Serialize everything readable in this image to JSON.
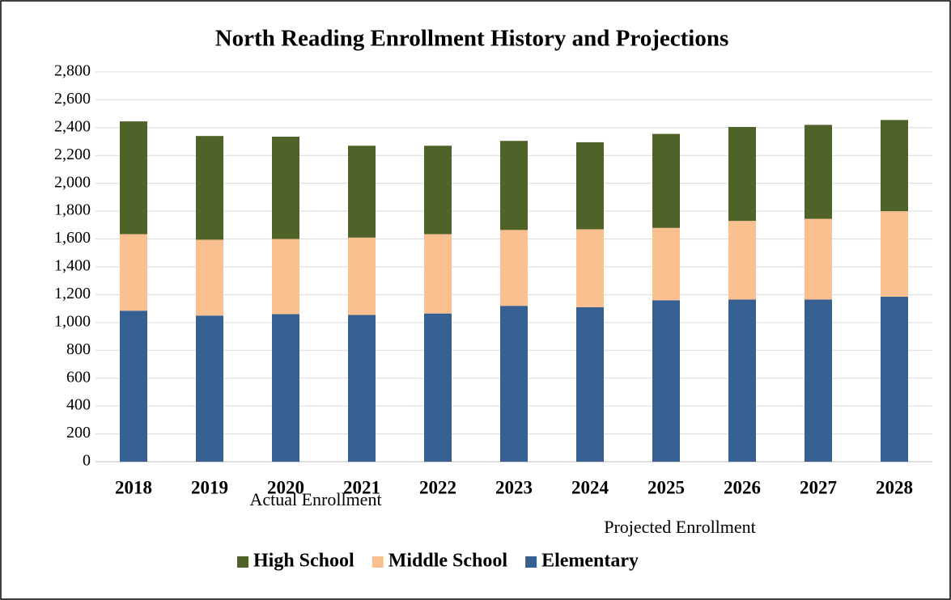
{
  "chart_data": {
    "type": "stacked_bar",
    "title": "North Reading Enrollment History and Projections",
    "categories": [
      "2018",
      "2019",
      "2020",
      "2021",
      "2022",
      "2023",
      "2024",
      "2025",
      "2026",
      "2027",
      "2028"
    ],
    "series": [
      {
        "name": "High School",
        "color": "#4f6228",
        "values": [
          810,
          745,
          735,
          660,
          635,
          640,
          625,
          675,
          675,
          675,
          655
        ]
      },
      {
        "name": "Middle School",
        "color": "#fac090",
        "values": [
          550,
          545,
          540,
          555,
          570,
          545,
          560,
          520,
          565,
          580,
          615
        ]
      },
      {
        "name": "Elementary",
        "color": "#376092",
        "values": [
          1085,
          1050,
          1060,
          1055,
          1065,
          1120,
          1110,
          1160,
          1165,
          1165,
          1185
        ]
      }
    ],
    "annotations": [
      "Actual Enrollment",
      "Projected Enrollment"
    ],
    "ylim": [
      0,
      2800
    ],
    "yticks": [
      0,
      200,
      400,
      600,
      800,
      {
        "value": 1000,
        "label": "1,000"
      },
      {
        "value": 1200,
        "label": "1,200"
      },
      {
        "value": 1400,
        "label": "1,400"
      },
      {
        "value": 1600,
        "label": "1,600"
      },
      {
        "value": 1800,
        "label": "1,800"
      },
      {
        "value": 2000,
        "label": "2,000"
      },
      {
        "value": 2200,
        "label": "2,200"
      },
      {
        "value": 2400,
        "label": "2,400"
      },
      {
        "value": 2600,
        "label": "2,600"
      },
      {
        "value": 2800,
        "label": "2,800"
      }
    ],
    "grid": true,
    "legend": "bottom"
  }
}
